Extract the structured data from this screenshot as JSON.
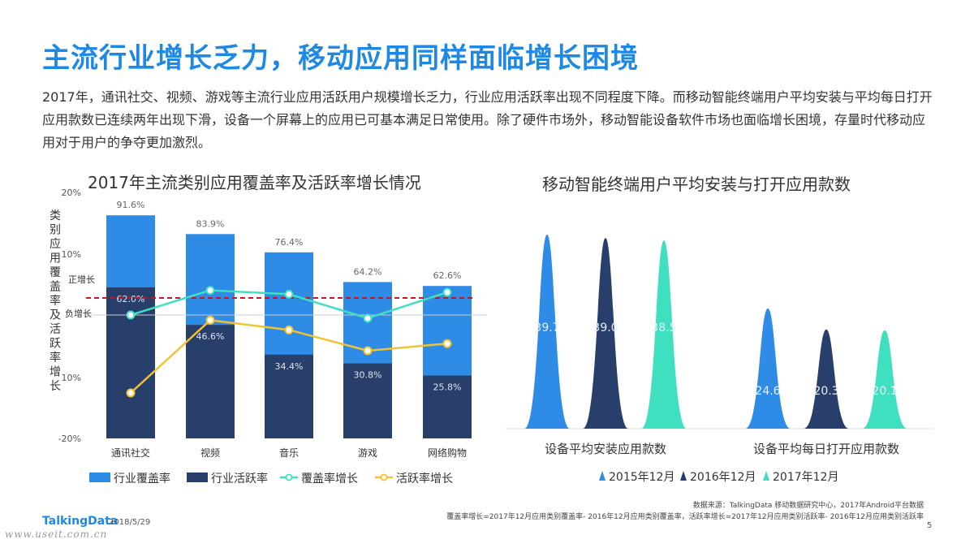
{
  "page": {
    "title": "主流行业增长乏力，移动应用同样面临增长困境",
    "intro": "2017年，通讯社交、视频、游戏等主流行业应用活跃用户规模增长乏力，行业应用活跃率出现不同程度下降。而移动智能终端用户平均安装与平均每日打开应用款数已连续两年出现下滑，设备一个屏幕上的应用已可基本满足日常使用。除了硬件市场外，移动智能设备软件市场也面临增长困境，存量时代移动应用对于用户的争夺更加激烈。",
    "source_line1": "数据来源：TalkingData 移动数据研究中心，2017年Android平台数据",
    "source_line2": "覆盖率增长=2017年12月应用类别覆盖率- 2016年12月应用类别覆盖率，活跃率增长=2017年12月应用类别活跃率- 2016年12月应用类别活跃率",
    "logo": "TalkingData",
    "date": "2018/5/29",
    "watermark": "www.useit.com.cn",
    "page_number": "5"
  },
  "chart_data": [
    {
      "type": "bar",
      "title": "2017年主流类别应用覆盖率及活跃率增长情况",
      "ylabel": "类别应用覆盖率及活跃率增长",
      "categories": [
        "通讯社交",
        "视频",
        "音乐",
        "游戏",
        "网络购物"
      ],
      "yticks": [
        "20%",
        "10%",
        "10%",
        "-20%"
      ],
      "ylim": [
        -20,
        20
      ],
      "annotations": {
        "positive": "正增长",
        "negative": "负增长"
      },
      "series": [
        {
          "name": "行业覆盖率",
          "kind": "bar",
          "values": [
            91.6,
            83.9,
            76.4,
            64.2,
            62.6
          ],
          "labels": [
            "91.6%",
            "83.9%",
            "76.4%",
            "64.2%",
            "62.6%"
          ],
          "color": "#2e8be6"
        },
        {
          "name": "行业活跃率",
          "kind": "bar",
          "values": [
            62.0,
            46.6,
            34.4,
            30.8,
            25.8
          ],
          "labels": [
            "62.0%",
            "46.6%",
            "34.4%",
            "30.8%",
            "25.8%"
          ],
          "color": "#283e6b"
        },
        {
          "name": "覆盖率增长",
          "kind": "line",
          "values": [
            0.0,
            3.8,
            3.2,
            -0.5,
            3.5
          ],
          "color": "#3ee0c0"
        },
        {
          "name": "活跃率增长",
          "kind": "line",
          "values": [
            -12.0,
            -0.8,
            -2.3,
            -5.5,
            -4.4
          ],
          "color": "#f2c230"
        }
      ]
    },
    {
      "type": "area",
      "title": "移动智能终端用户平均安装与打开应用款数",
      "categories": [
        "设备平均安装应用款数",
        "设备平均每日打开应用款数"
      ],
      "ylim": [
        0,
        42
      ],
      "series": [
        {
          "name": "2015年12月",
          "values": [
            39.7,
            24.6
          ],
          "labels": [
            "39.7",
            "24.6"
          ],
          "color": "#2e8be6"
        },
        {
          "name": "2016年12月",
          "values": [
            39.0,
            20.3
          ],
          "labels": [
            "39.0",
            "20.3"
          ],
          "color": "#283e6b"
        },
        {
          "name": "2017年12月",
          "values": [
            38.5,
            20.1
          ],
          "labels": [
            "38.5",
            "20.1"
          ],
          "color": "#3ee0c0"
        }
      ]
    }
  ]
}
